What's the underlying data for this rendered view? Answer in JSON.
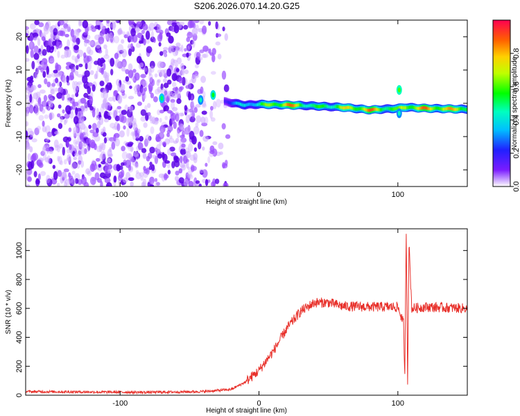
{
  "title": "S206.2026.070.14.20.G25",
  "chart_data": [
    {
      "type": "heatmap",
      "name": "spectrogram",
      "xlabel": "Height of straight line (km)",
      "ylabel": "Frequency (Hz)",
      "xlim": [
        -168,
        150
      ],
      "ylim": [
        -25,
        25
      ],
      "xticks": [
        -100,
        0,
        100
      ],
      "xtick_labels": [
        "-100",
        "0",
        "100"
      ],
      "yticks": [
        -20,
        -10,
        0,
        10,
        20
      ],
      "ytick_labels": [
        "-20",
        "-10",
        "0",
        "10",
        "20"
      ],
      "colorbar": {
        "label": "Normalized spectral amplitude",
        "range": [
          0.0,
          1.0
        ],
        "ticks": [
          0.0,
          0.2,
          0.4,
          0.6,
          0.8
        ],
        "tick_labels": [
          "0.0",
          "0.2",
          "0.4",
          "0.6",
          "0.8"
        ]
      },
      "noise_region_x": [
        -168,
        -25
      ],
      "tone_track": {
        "x": [
          -25,
          -10,
          0,
          20,
          40,
          60,
          80,
          100,
          105,
          120,
          150
        ],
        "freq": [
          0.5,
          -0.5,
          -0.3,
          -0.5,
          -0.8,
          -1.2,
          -2.0,
          -1.5,
          -1.2,
          -1.5,
          -1.8
        ],
        "amplitude": [
          0.25,
          0.45,
          0.55,
          0.95,
          0.55,
          0.75,
          0.92,
          0.6,
          0.85,
          0.9,
          0.8
        ]
      }
    },
    {
      "type": "line",
      "name": "snr",
      "xlabel": "Height of straight line (km)",
      "ylabel": "SNR (10 * v/v)",
      "xlim": [
        -168,
        150
      ],
      "ylim": [
        0,
        1150
      ],
      "xticks": [
        -100,
        0,
        100
      ],
      "xtick_labels": [
        "-100",
        "0",
        "100"
      ],
      "yticks": [
        0,
        200,
        400,
        600,
        800,
        1000
      ],
      "ytick_labels": [
        "0",
        "200",
        "400",
        "600",
        "800",
        "1000"
      ],
      "color": "#e8302a",
      "series": [
        {
          "name": "SNR",
          "x": [
            -168,
            -120,
            -80,
            -40,
            -20,
            -10,
            0,
            10,
            20,
            30,
            40,
            50,
            60,
            80,
            100,
            104,
            105,
            106,
            107,
            108,
            110,
            120,
            150
          ],
          "values": [
            25,
            22,
            20,
            25,
            40,
            90,
            170,
            300,
            460,
            580,
            640,
            640,
            615,
            610,
            610,
            500,
            120,
            1150,
            100,
            1050,
            600,
            610,
            600
          ]
        }
      ]
    }
  ]
}
